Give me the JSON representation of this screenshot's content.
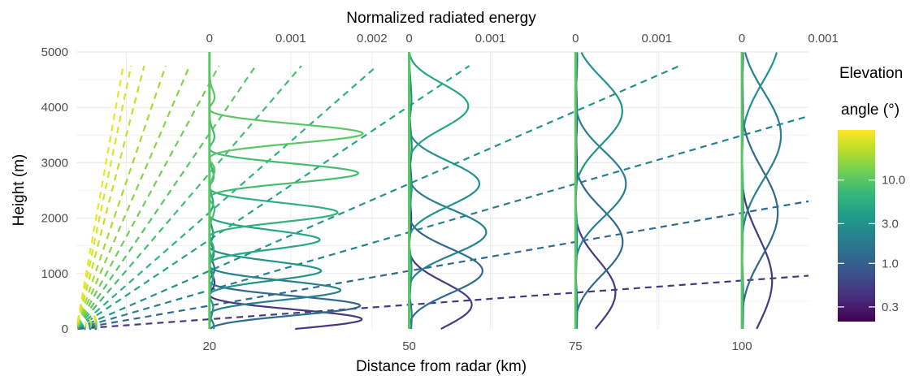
{
  "chart_data": {
    "type": "line",
    "x_axis": {
      "label": "Distance from radar (km)",
      "ticks": [
        20,
        50,
        75,
        100
      ],
      "range": [
        0,
        110
      ]
    },
    "y_axis": {
      "label": "Height (m)",
      "ticks": [
        0,
        1000,
        2000,
        3000,
        4000,
        5000
      ],
      "range": [
        0,
        5000
      ]
    },
    "top_axis": {
      "label": "Normalized radiated energy",
      "panels": [
        {
          "distance_km": 20,
          "tick_labels": [
            "0",
            "0.001",
            "0.002"
          ],
          "tick_values": [
            0,
            0.001,
            0.002
          ]
        },
        {
          "distance_km": 50,
          "tick_labels": [
            "0",
            "0.001"
          ],
          "tick_values": [
            0,
            0.001
          ]
        },
        {
          "distance_km": 75,
          "tick_labels": [
            "0",
            "0.001"
          ],
          "tick_values": [
            0,
            0.001
          ]
        },
        {
          "distance_km": 100,
          "tick_labels": [
            "0",
            "0.001"
          ],
          "tick_values": [
            0,
            0.001
          ]
        }
      ]
    },
    "color_scale": {
      "title_line1": "Elevation",
      "title_line2": "angle (°)",
      "palette": [
        "#440154",
        "#482878",
        "#3e4a89",
        "#31688e",
        "#26828e",
        "#1f9e89",
        "#35b779",
        "#6ece58",
        "#b5de2b",
        "#fde725"
      ],
      "ticks": [
        {
          "label": "0.3",
          "value": 0.3
        },
        {
          "label": "1.0",
          "value": 1.0
        },
        {
          "label": "3.0",
          "value": 3.0
        },
        {
          "label": "10.0",
          "value": 10.0
        }
      ],
      "range": [
        0.2,
        40
      ]
    },
    "elevation_angles_deg": [
      0.5,
      1.2,
      2.0,
      3.0,
      4.6,
      6.0,
      8.0,
      10.0,
      12.5,
      15.6,
      19.5,
      25.0,
      30.0,
      34.0
    ]
  }
}
